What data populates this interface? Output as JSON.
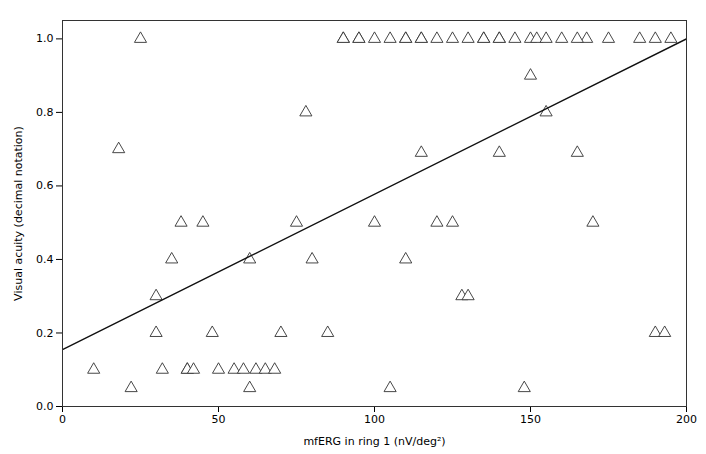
{
  "chart_data": {
    "type": "scatter",
    "xlabel": "mfERG in ring 1 (nV/deg²)",
    "ylabel": "Visual acuity (decimal notation)",
    "xlim": [
      0,
      200
    ],
    "ylim": [
      0,
      1.05
    ],
    "xticks": [
      0,
      50,
      100,
      150,
      200
    ],
    "yticks": [
      {
        "value": 0,
        "label": "0.0"
      },
      0.2,
      0.4,
      0.6,
      0.8,
      {
        "value": 1.0,
        "label": "1.0"
      }
    ],
    "grid": false,
    "series": [
      {
        "type": "scatter",
        "color": "#333333",
        "marker": "triangle",
        "x": [
          10,
          18,
          22,
          30,
          30,
          32,
          35,
          38,
          40,
          40,
          42,
          45,
          48,
          50,
          55,
          58,
          60,
          60,
          62,
          65,
          68,
          70,
          75,
          78,
          80,
          85,
          90,
          95,
          100,
          105,
          110,
          115,
          120,
          125,
          128,
          135,
          140,
          148,
          150,
          155,
          160,
          165,
          168,
          170,
          175,
          185,
          190,
          193,
          25,
          90,
          95,
          100,
          105,
          110,
          110,
          115,
          115,
          120,
          125,
          130,
          130,
          135,
          140,
          140,
          145,
          150,
          152,
          155,
          165,
          190,
          195
        ],
        "values": [
          0.1,
          0.7,
          0.05,
          0.3,
          0.2,
          0.1,
          0.4,
          0.5,
          0.1,
          0.1,
          0.1,
          0.5,
          0.2,
          0.1,
          0.1,
          0.1,
          0.4,
          0.05,
          0.1,
          0.1,
          0.1,
          0.2,
          0.5,
          0.8,
          0.4,
          0.2,
          1.0,
          1.0,
          0.5,
          0.05,
          0.4,
          0.69,
          0.5,
          0.5,
          0.3,
          1.0,
          0.69,
          0.05,
          0.9,
          0.8,
          1.0,
          0.69,
          1.0,
          0.5,
          1.0,
          1.0,
          0.2,
          0.2,
          1.0,
          1.0,
          1.0,
          1.0,
          1.0,
          1.0,
          1.0,
          1.0,
          1.0,
          1.0,
          1.0,
          1.0,
          0.3,
          1.0,
          1.0,
          1.0,
          1.0,
          1.0,
          1.0,
          1.0,
          1.0,
          1.0,
          1.0
        ]
      },
      {
        "type": "line",
        "color": "#111111",
        "line_style": "solid",
        "x": [
          0,
          200
        ],
        "values": [
          0.155,
          1.0
        ]
      }
    ]
  }
}
